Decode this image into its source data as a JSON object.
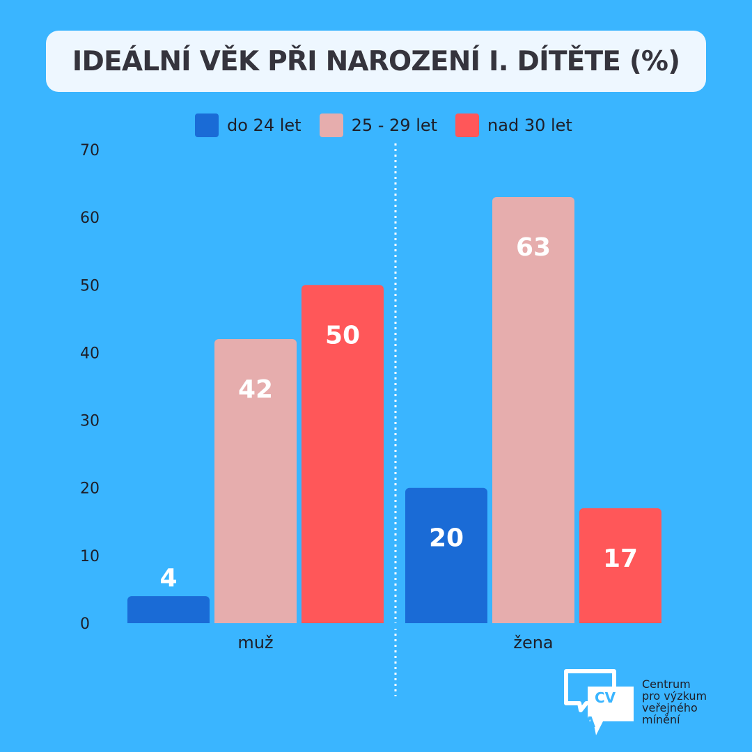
{
  "chart_data": {
    "type": "bar",
    "title": "IDEÁLNÍ VĚK PŘI NAROZENÍ I. DÍTĚTE (%)",
    "categories": [
      "muž",
      "žena"
    ],
    "series": [
      {
        "name": "do 24 let",
        "color": "#1a6bd6",
        "values": [
          4,
          20
        ]
      },
      {
        "name": "25 - 29 let",
        "color": "#e6adad",
        "values": [
          42,
          63
        ]
      },
      {
        "name": "nad 30 let",
        "color": "#ff5759",
        "values": [
          50,
          17
        ]
      }
    ],
    "ylim": [
      0,
      70
    ],
    "yticks": [
      0,
      10,
      20,
      30,
      40,
      50,
      60,
      70
    ],
    "grid": false,
    "legend_position": "top",
    "xlabel": "",
    "ylabel": "",
    "data_labels": true,
    "category_separator": "dotted-vertical-line"
  },
  "logo": {
    "mark_text": "CVVM",
    "lines": [
      "Centrum",
      "pro výzkum",
      "veřejného",
      "mínění"
    ]
  },
  "colors": {
    "background": "#3ab5ff",
    "title_box": "#eef7ff",
    "title_text": "#35343d"
  }
}
